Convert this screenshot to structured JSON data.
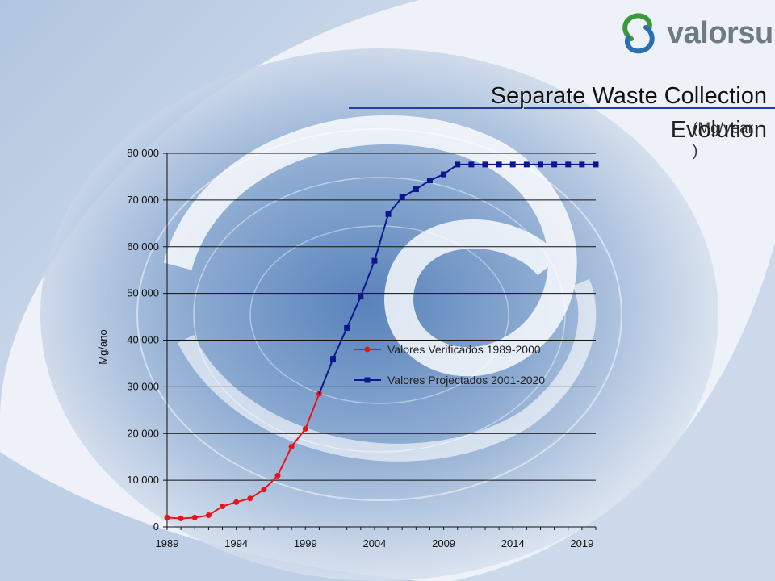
{
  "brand": {
    "name": "valorsul",
    "accent": "#1f3fa8",
    "logo_green": "#3a9a3a",
    "logo_blue": "#2a6fb5"
  },
  "header": {
    "title_line1": "Separate  Waste Collection",
    "title_line2": "Evolution",
    "unit": "(Mg/year\n)"
  },
  "chart_data": {
    "type": "line",
    "ylabel": "Mg/ano",
    "xlabel": "",
    "xlim": [
      1989,
      2020
    ],
    "ylim": [
      0,
      80000
    ],
    "x_ticks": [
      1989,
      1994,
      1999,
      2004,
      2009,
      2014,
      2019
    ],
    "y_ticks": [
      "0",
      "10 000",
      "20 000",
      "30 000",
      "40 000",
      "50 000",
      "60 000",
      "70 000",
      "80 000"
    ],
    "y_tick_values": [
      0,
      10000,
      20000,
      30000,
      40000,
      50000,
      60000,
      70000,
      80000
    ],
    "grid": "horizontal",
    "legend": "center-right",
    "series": [
      {
        "name": "Valores Verificados 1989-2000",
        "color": "#e8141c",
        "marker": "circle",
        "x": [
          1989,
          1990,
          1991,
          1992,
          1993,
          1994,
          1995,
          1996,
          1997,
          1998,
          1999,
          2000
        ],
        "y": [
          2000,
          1800,
          2000,
          2500,
          4400,
          5300,
          6100,
          8000,
          11000,
          17200,
          21000,
          28500
        ]
      },
      {
        "name": "Valores Projectados 2001-2020",
        "color": "#0e168f",
        "marker": "square",
        "x": [
          2001,
          2002,
          2003,
          2004,
          2005,
          2006,
          2007,
          2008,
          2009,
          2010,
          2011,
          2012,
          2013,
          2014,
          2015,
          2016,
          2017,
          2018,
          2019,
          2020
        ],
        "y": [
          36000,
          42600,
          49300,
          57000,
          67000,
          70600,
          72300,
          74200,
          75500,
          77600,
          77600,
          77600,
          77600,
          77600,
          77600,
          77600,
          77600,
          77600,
          77600,
          77600
        ]
      }
    ]
  }
}
